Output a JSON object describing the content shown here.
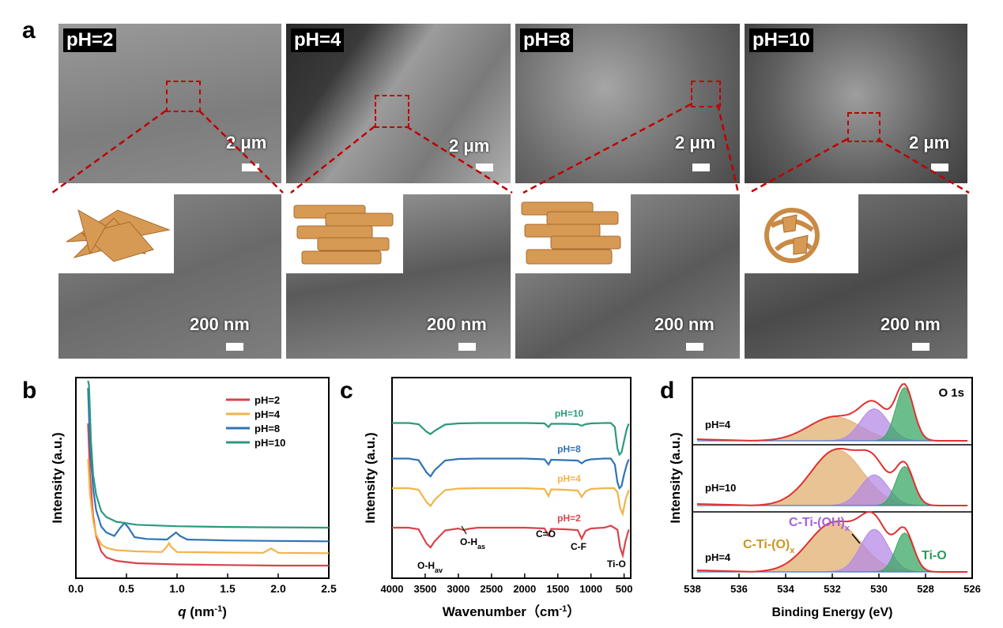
{
  "panels": {
    "a": "a",
    "b": "b",
    "c": "c",
    "d": "d"
  },
  "sem": {
    "top": [
      {
        "label": "pH=2",
        "scale": "2 μm"
      },
      {
        "label": "pH=4",
        "scale": "2 μm"
      },
      {
        "label": "pH=8",
        "scale": "2 μm"
      },
      {
        "label": "pH=10",
        "scale": "2 μm"
      }
    ],
    "bottom_scale": "200 nm"
  },
  "chart_data": [
    {
      "type": "line",
      "panel": "b",
      "xlabel_var": "q",
      "xlabel_unit": "(nm",
      "xlabel_sup": "-1",
      "xlabel_end": ")",
      "ylabel": "Intensity (a.u.)",
      "xlim": [
        0,
        2.5
      ],
      "xticks": [
        "0.0",
        "0.5",
        "1.0",
        "1.5",
        "2.0",
        "2.5"
      ],
      "legend_position": "top-right",
      "series": [
        {
          "name": "pH=2",
          "color": "#d9434e",
          "offset": 0,
          "x": [
            0.12,
            0.14,
            0.17,
            0.2,
            0.25,
            0.3,
            0.4,
            0.6,
            1.0,
            1.5,
            2.0,
            2.5
          ],
          "y": [
            1.2,
            0.75,
            0.42,
            0.25,
            0.12,
            0.07,
            0.04,
            0.02,
            0.01,
            0.005,
            0.0,
            0.0
          ]
        },
        {
          "name": "pH=4",
          "color": "#f2b44a",
          "offset": 0.1,
          "x": [
            0.12,
            0.14,
            0.17,
            0.2,
            0.25,
            0.3,
            0.4,
            0.6,
            0.85,
            0.9,
            0.92,
            0.94,
            1.0,
            1.5,
            1.85,
            1.9,
            1.93,
            1.96,
            2.0,
            2.5
          ],
          "y": [
            0.8,
            0.5,
            0.28,
            0.16,
            0.08,
            0.05,
            0.03,
            0.02,
            0.015,
            0.06,
            0.09,
            0.06,
            0.015,
            0.01,
            0.008,
            0.03,
            0.045,
            0.03,
            0.008,
            0.005
          ]
        },
        {
          "name": "pH=8",
          "color": "#2f73b8",
          "offset": 0.2,
          "x": [
            0.12,
            0.14,
            0.17,
            0.2,
            0.25,
            0.3,
            0.38,
            0.44,
            0.48,
            0.52,
            0.58,
            0.7,
            0.9,
            0.96,
            0.99,
            1.03,
            1.1,
            1.5,
            2.0,
            2.5
          ],
          "y": [
            1.3,
            0.8,
            0.45,
            0.27,
            0.13,
            0.08,
            0.05,
            0.12,
            0.16,
            0.12,
            0.04,
            0.025,
            0.02,
            0.06,
            0.08,
            0.05,
            0.02,
            0.012,
            0.008,
            0.005
          ]
        },
        {
          "name": "pH=10",
          "color": "#2a9a7d",
          "offset": 0.32,
          "x": [
            0.12,
            0.13,
            0.15,
            0.17,
            0.2,
            0.25,
            0.3,
            0.4,
            0.6,
            1.0,
            1.5,
            2.0,
            2.5
          ],
          "y": [
            1.6,
            1.2,
            0.72,
            0.45,
            0.28,
            0.14,
            0.09,
            0.05,
            0.025,
            0.012,
            0.006,
            0.003,
            0.0
          ]
        }
      ]
    },
    {
      "type": "line",
      "panel": "c",
      "xlabel": "Wavenumber（cm",
      "xlabel_sup": "-1",
      "xlabel_end": "）",
      "ylabel": "Intensity (a.u.)",
      "xlim": [
        4000,
        400
      ],
      "xticks": [
        "4000",
        "3500",
        "3000",
        "2500",
        "2000",
        "1500",
        "1000",
        "500"
      ],
      "series": [
        {
          "name": "pH=2",
          "color": "#d9434e",
          "offset": 0,
          "x": [
            4000,
            3750,
            3600,
            3480,
            3420,
            3360,
            3200,
            3000,
            2920,
            2850,
            2700,
            2000,
            1700,
            1640,
            1600,
            1400,
            1200,
            1140,
            1080,
            1000,
            800,
            700,
            600,
            560,
            520,
            480,
            430
          ],
          "y": [
            1.0,
            1.0,
            0.96,
            0.6,
            0.5,
            0.65,
            0.93,
            0.98,
            0.94,
            0.97,
            1.0,
            1.0,
            0.98,
            0.8,
            0.97,
            0.96,
            0.94,
            0.72,
            0.92,
            0.98,
            1.0,
            1.05,
            0.95,
            0.5,
            0.3,
            0.65,
            0.95
          ]
        },
        {
          "name": "pH=4",
          "color": "#f2b44a",
          "offset": 1.0,
          "x": [
            4000,
            3750,
            3600,
            3480,
            3420,
            3360,
            3200,
            3000,
            2700,
            2000,
            1700,
            1640,
            1600,
            1400,
            1200,
            1140,
            1080,
            1000,
            800,
            650,
            600,
            560,
            520,
            480,
            430
          ],
          "y": [
            1.0,
            1.0,
            0.96,
            0.65,
            0.55,
            0.7,
            0.95,
            0.99,
            1.0,
            1.0,
            0.98,
            0.8,
            0.97,
            0.96,
            0.94,
            0.78,
            0.92,
            0.98,
            1.0,
            1.0,
            0.9,
            0.5,
            0.35,
            0.7,
            0.95
          ]
        },
        {
          "name": "pH=8",
          "color": "#2f73b8",
          "offset": 1.75,
          "x": [
            4000,
            3750,
            3600,
            3480,
            3420,
            3360,
            3200,
            3000,
            2700,
            2000,
            1700,
            1640,
            1600,
            1400,
            1200,
            1140,
            1080,
            1000,
            800,
            700,
            640,
            600,
            570,
            540,
            500,
            460,
            430
          ],
          "y": [
            1.0,
            1.0,
            0.96,
            0.65,
            0.55,
            0.7,
            0.95,
            0.99,
            1.0,
            1.0,
            0.98,
            0.85,
            0.97,
            0.96,
            0.95,
            0.88,
            0.95,
            0.98,
            1.0,
            1.0,
            0.85,
            0.4,
            0.25,
            0.3,
            0.6,
            0.85,
            0.98
          ]
        },
        {
          "name": "pH=10",
          "color": "#2a9a7d",
          "offset": 2.65,
          "x": [
            4000,
            3750,
            3600,
            3480,
            3420,
            3360,
            3200,
            3000,
            2700,
            2000,
            1700,
            1640,
            1600,
            1400,
            1200,
            1140,
            1080,
            1000,
            800,
            700,
            640,
            600,
            570,
            540,
            500,
            460,
            430
          ],
          "y": [
            1.0,
            1.0,
            0.97,
            0.78,
            0.72,
            0.8,
            0.96,
            0.99,
            1.0,
            1.0,
            0.99,
            0.9,
            0.98,
            0.98,
            0.97,
            0.93,
            0.97,
            0.99,
            1.0,
            1.0,
            0.9,
            0.35,
            0.2,
            0.25,
            0.55,
            0.85,
            0.98
          ]
        }
      ],
      "annotations": [
        "O-H",
        "av",
        "O-H",
        "as",
        "C=O",
        "C-F",
        "Ti-O"
      ]
    },
    {
      "type": "area",
      "panel": "d",
      "xlabel": "Binding Energy (eV)",
      "ylabel": "Intensity (a.u.)",
      "xlim": [
        538,
        526
      ],
      "xticks": [
        "538",
        "536",
        "534",
        "532",
        "530",
        "528",
        "526"
      ],
      "title": "O 1s",
      "subpanels": [
        {
          "label": "pH=4",
          "components": [
            {
              "name": "C-Ti-(O)",
              "center": 531.9,
              "fwhm": 2.6,
              "height": 0.45,
              "color": "#e0b070"
            },
            {
              "name": "C-Ti-(OH)",
              "center": 530.2,
              "fwhm": 1.4,
              "height": 0.6,
              "color": "#b58ae6"
            },
            {
              "name": "Ti-O",
              "center": 528.9,
              "fwhm": 0.9,
              "height": 1.0,
              "color": "#3aa866"
            }
          ]
        },
        {
          "label": "pH=10",
          "components": [
            {
              "name": "C-Ti-(O)",
              "center": 531.8,
              "fwhm": 2.6,
              "height": 1.0,
              "color": "#e0b070"
            },
            {
              "name": "C-Ti-(OH)",
              "center": 530.2,
              "fwhm": 1.4,
              "height": 0.55,
              "color": "#b58ae6"
            },
            {
              "name": "Ti-O",
              "center": 528.9,
              "fwhm": 0.9,
              "height": 0.7,
              "color": "#3aa866"
            }
          ]
        },
        {
          "label": "pH=4",
          "components": [
            {
              "name": "C-Ti-(O)",
              "center": 531.9,
              "fwhm": 2.6,
              "height": 0.7,
              "color": "#e0b070"
            },
            {
              "name": "C-Ti-(OH)",
              "center": 530.2,
              "fwhm": 1.4,
              "height": 0.6,
              "color": "#b58ae6"
            },
            {
              "name": "Ti-O",
              "center": 528.9,
              "fwhm": 0.9,
              "height": 0.55,
              "color": "#3aa866"
            }
          ]
        }
      ],
      "peak_labels": [
        {
          "text": "C-Ti-(O)",
          "sub": "x",
          "color": "#c9971f"
        },
        {
          "text": "C-Ti-(OH)",
          "sub": "x",
          "color": "#a561d8"
        },
        {
          "text": "Ti-O",
          "sub": "",
          "color": "#2a9a5a"
        }
      ]
    }
  ]
}
